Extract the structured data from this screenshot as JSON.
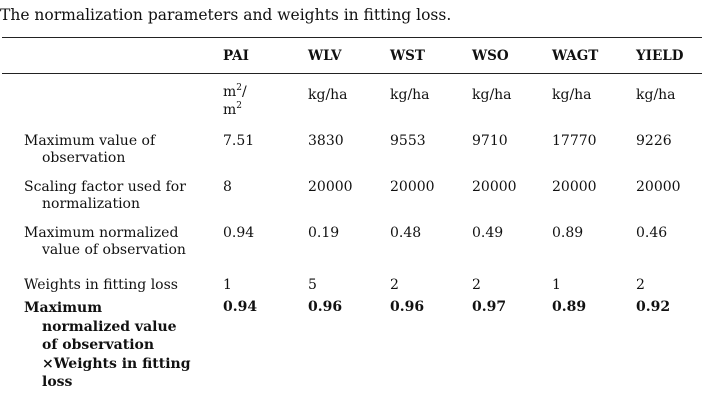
{
  "caption": "The normalization parameters and weights in fitting loss.",
  "headers": [
    "PAI",
    "WLV",
    "WST",
    "WSO",
    "WAGT",
    "YIELD"
  ],
  "units": {
    "pai_base": "m",
    "pai_sup": "2",
    "pai_slash": "/",
    "pai_base2": "m",
    "pai_sup2": "2",
    "wlv": "kg/ha",
    "wst": "kg/ha",
    "wso": "kg/ha",
    "wagt": "kg/ha",
    "yield": "kg/ha"
  },
  "rows": [
    {
      "label_line1": "Maximum value of",
      "label_line2": "observation",
      "values": [
        "7.51",
        "3830",
        "9553",
        "9710",
        "17770",
        "9226"
      ]
    },
    {
      "label_line1": "Scaling factor used for",
      "label_line2": "normalization",
      "values": [
        "8",
        "20000",
        "20000",
        "20000",
        "20000",
        "20000"
      ]
    },
    {
      "label_line1": "Maximum normalized",
      "label_line2": "value of observation",
      "values": [
        "0.94",
        "0.19",
        "0.48",
        "0.49",
        "0.89",
        "0.46"
      ]
    },
    {
      "label_line1": "Weights in fitting loss",
      "values": [
        "1",
        "5",
        "2",
        "2",
        "1",
        "2"
      ]
    }
  ],
  "final_row": {
    "label_lines": [
      "Maximum",
      "normalized value",
      "of observation",
      "×Weights in fitting",
      "loss"
    ],
    "values": [
      "0.94",
      "0.96",
      "0.96",
      "0.97",
      "0.89",
      "0.92"
    ]
  }
}
